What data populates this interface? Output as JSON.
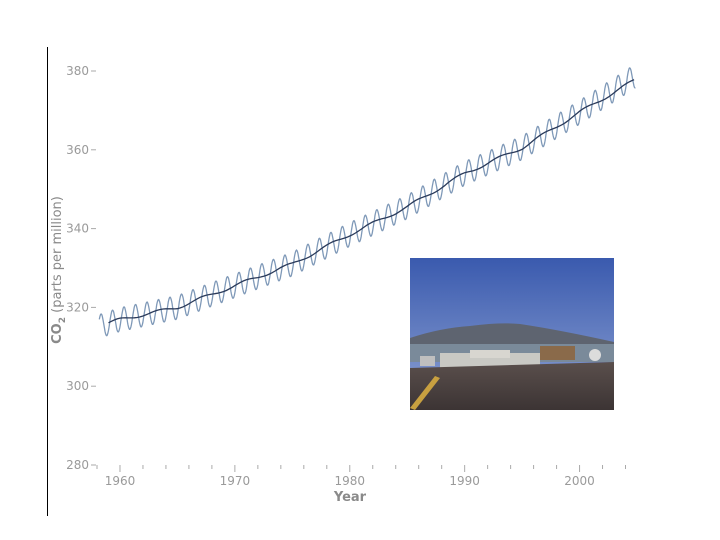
{
  "chart_data": {
    "type": "line",
    "xlabel": "Year",
    "ylabel_main": "CO",
    "ylabel_sub": "2",
    "ylabel_rest": " (parts per million)",
    "xlim": [
      1958,
      2005
    ],
    "ylim": [
      280,
      382
    ],
    "xticks": [
      1960,
      1970,
      1980,
      1990,
      2000
    ],
    "yticks": [
      280,
      300,
      320,
      340,
      360,
      380
    ],
    "grid": false,
    "series": [
      {
        "role": "monthly",
        "color": "#7f99b8",
        "seasonal_amplitude": 3,
        "x": [
          1958,
          1960,
          1965,
          1970,
          1975,
          1980,
          1985,
          1990,
          1995,
          2000,
          2005
        ],
        "y": [
          315,
          316.9,
          320,
          325.5,
          331,
          338.5,
          345.5,
          354,
          360.5,
          369.5,
          379
        ]
      },
      {
        "role": "annual-trend",
        "color": "#2a3a5a",
        "x": [
          1959,
          1960,
          1965,
          1970,
          1975,
          1980,
          1985,
          1990,
          1995,
          2000,
          2005
        ],
        "y": [
          316,
          316.9,
          320,
          325.5,
          331,
          338.5,
          345.5,
          354,
          360.5,
          369.5,
          378
        ]
      }
    ]
  },
  "photo": {
    "subject": "observatory buildings on lava field with mountain in background",
    "sky_color": "#3d5fb0",
    "mountain_color": "#5a5f6a",
    "ground_color": "#4a4040"
  }
}
